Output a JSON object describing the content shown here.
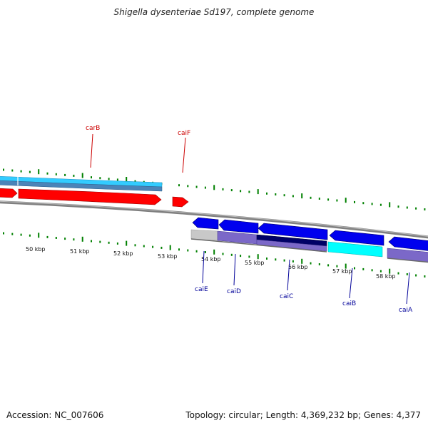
{
  "title": "Shigella dysenteriae Sd197, complete genome",
  "footer": {
    "accession": "Accession: NC_007606",
    "summary": "Topology: circular; Length: 4,369,232 bp; Genes: 4,377"
  },
  "colors": {
    "forward_gene": "#ff0000",
    "reverse_gene": "#0000ee",
    "forward_label": "#cc0000",
    "reverse_label": "#000099",
    "backbone": "#808080",
    "ticks": "#008000",
    "cds_light_blue": "#33ccff",
    "cds_purple": "#7b68c8",
    "cds_cyan": "#00ffff",
    "cds_grey": "#c8c8c8",
    "cds_navy": "#000066"
  },
  "scale": {
    "unit": "kbp",
    "labels": [
      "50 kbp",
      "51 kbp",
      "52 kbp",
      "53 kbp",
      "54 kbp",
      "55 kbp",
      "56 kbp",
      "57 kbp",
      "58 kbp"
    ]
  },
  "genes": [
    {
      "name": "carB",
      "strand": "forward"
    },
    {
      "name": "caiF",
      "strand": "forward"
    },
    {
      "name": "caiE",
      "strand": "reverse"
    },
    {
      "name": "caiD",
      "strand": "reverse"
    },
    {
      "name": "caiC",
      "strand": "reverse"
    },
    {
      "name": "caiB",
      "strand": "reverse"
    },
    {
      "name": "caiA",
      "strand": "reverse"
    }
  ]
}
